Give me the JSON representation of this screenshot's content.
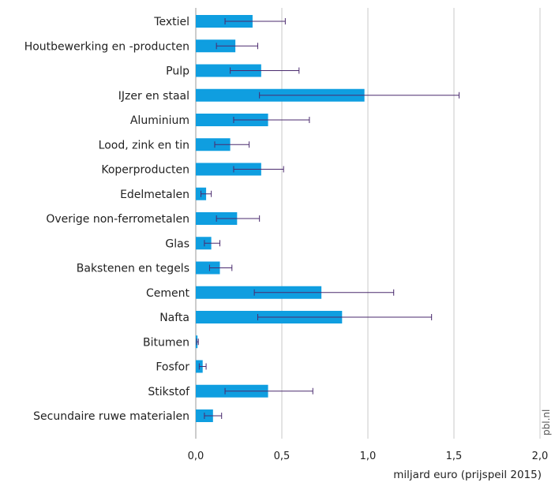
{
  "chart_data": {
    "type": "bar",
    "orientation": "horizontal",
    "categories": [
      "Textiel",
      "Houtbewerking en -producten",
      "Pulp",
      "IJzer en staal",
      "Aluminium",
      "Lood, zink en tin",
      "Koperproducten",
      "Edelmetalen",
      "Overige non-ferrometalen",
      "Glas",
      "Bakstenen en tegels",
      "Cement",
      "Nafta",
      "Bitumen",
      "Fosfor",
      "Stikstof",
      "Secundaire ruwe materialen"
    ],
    "values": [
      0.33,
      0.23,
      0.38,
      0.98,
      0.42,
      0.2,
      0.38,
      0.06,
      0.24,
      0.09,
      0.14,
      0.73,
      0.85,
      0.01,
      0.04,
      0.42,
      0.1
    ],
    "error_low": [
      0.17,
      0.12,
      0.2,
      0.37,
      0.22,
      0.11,
      0.22,
      0.03,
      0.12,
      0.05,
      0.08,
      0.34,
      0.36,
      0.005,
      0.02,
      0.17,
      0.05
    ],
    "error_high": [
      0.52,
      0.36,
      0.6,
      1.53,
      0.66,
      0.31,
      0.51,
      0.09,
      0.37,
      0.14,
      0.21,
      1.15,
      1.37,
      0.015,
      0.06,
      0.68,
      0.15
    ],
    "xlim": [
      0,
      2.0
    ],
    "xticks": [
      0,
      0.5,
      1.0,
      1.5,
      2.0
    ],
    "xtick_labels": [
      "0,0",
      "0,5",
      "1,0",
      "1,5",
      "2,0"
    ],
    "xlabel": "miljard euro (prijspeil 2015)",
    "title": "",
    "grid": "vertical",
    "source_label": "pbl.nl",
    "colors": {
      "bar": "#0f9ee0",
      "error": "#4a2a6e",
      "grid": "#c8c8c8"
    }
  }
}
